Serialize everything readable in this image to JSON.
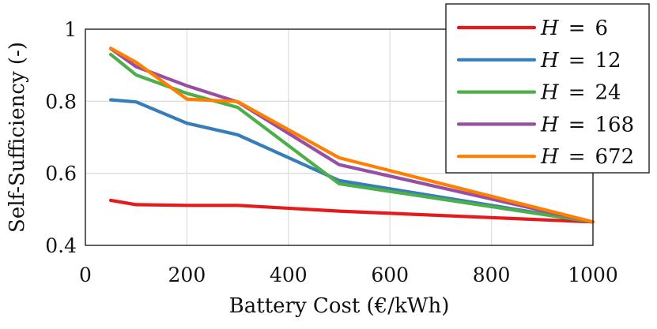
{
  "chart_data": {
    "type": "line",
    "title": "",
    "xlabel": "Battery Cost (€/kWh)",
    "ylabel": "Self-Sufficiency (-)",
    "xlim": [
      0,
      1000
    ],
    "ylim": [
      0.4,
      1.0
    ],
    "grid": true,
    "legend_position": "top-right",
    "x_ticks": [
      0,
      200,
      400,
      600,
      800,
      1000
    ],
    "x_tick_labels": [
      "0",
      "200",
      "400",
      "600",
      "800",
      "1000"
    ],
    "y_ticks": [
      0.4,
      0.6,
      0.8,
      1.0
    ],
    "y_tick_labels": [
      "0.4",
      "0.6",
      "0.8",
      "1"
    ],
    "x": [
      50,
      100,
      200,
      300,
      500,
      1000
    ],
    "series": [
      {
        "name": "H = 6",
        "var": "H",
        "op": "=",
        "num": "6",
        "color": "#e41a1c",
        "values": [
          0.525,
          0.513,
          0.511,
          0.511,
          0.495,
          0.465
        ]
      },
      {
        "name": "H = 12",
        "var": "H",
        "op": "=",
        "num": "12",
        "color": "#377eb8",
        "values": [
          0.804,
          0.798,
          0.739,
          0.707,
          0.58,
          0.465
        ]
      },
      {
        "name": "H = 24",
        "var": "H",
        "op": "=",
        "num": "24",
        "color": "#4daf4a",
        "values": [
          0.93,
          0.873,
          0.822,
          0.783,
          0.571,
          0.465
        ]
      },
      {
        "name": "H = 168",
        "var": "H",
        "op": "=",
        "num": "168",
        "color": "#984ea3",
        "values": [
          0.946,
          0.896,
          0.843,
          0.798,
          0.624,
          0.465
        ]
      },
      {
        "name": "H = 672",
        "var": "H",
        "op": "=",
        "num": "672",
        "color": "#ff7f00",
        "values": [
          0.947,
          0.908,
          0.806,
          0.799,
          0.643,
          0.465
        ]
      }
    ]
  }
}
